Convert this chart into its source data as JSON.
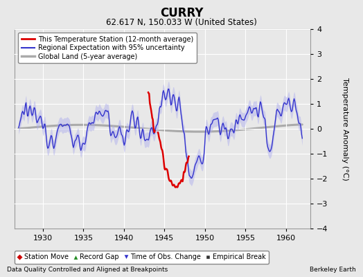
{
  "title": "CURRY",
  "subtitle": "62.617 N, 150.033 W (United States)",
  "ylabel": "Temperature Anomaly (°C)",
  "footer_left": "Data Quality Controlled and Aligned at Breakpoints",
  "footer_right": "Berkeley Earth",
  "xlim": [
    1926.5,
    1963
  ],
  "ylim": [
    -4,
    4
  ],
  "yticks": [
    -4,
    -3,
    -2,
    -1,
    0,
    1,
    2,
    3,
    4
  ],
  "xticks": [
    1930,
    1935,
    1940,
    1945,
    1950,
    1955,
    1960
  ],
  "bg_color": "#e8e8e8",
  "plot_bg_color": "#e8e8e8",
  "grid_color": "#ffffff",
  "regional_color": "#3333cc",
  "regional_band_color": "#aaaaee",
  "station_color": "#dd0000",
  "global_color": "#aaaaaa",
  "legend_items": [
    {
      "label": "This Temperature Station (12-month average)",
      "color": "#dd0000",
      "lw": 2
    },
    {
      "label": "Regional Expectation with 95% uncertainty",
      "color": "#3333cc",
      "lw": 1.5
    },
    {
      "label": "Global Land (5-year average)",
      "color": "#aaaaaa",
      "lw": 2
    }
  ],
  "marker_legend": [
    {
      "marker": "D",
      "color": "#cc0000",
      "label": "Station Move"
    },
    {
      "marker": "^",
      "color": "#228B22",
      "label": "Record Gap"
    },
    {
      "marker": "v",
      "color": "#3333cc",
      "label": "Time of Obs. Change"
    },
    {
      "marker": "s",
      "color": "#333333",
      "label": "Empirical Break"
    }
  ]
}
